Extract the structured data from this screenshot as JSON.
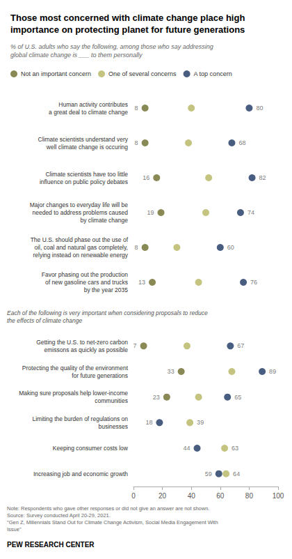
{
  "chart_data": {
    "type": "dot",
    "title": "Those most concerned with climate change place high\nimportance on protecting planet for future generations",
    "subtitle": "% of U.S. adults who say the following, among those who say addressing\nglobal climate change is ___ to them personally",
    "categories": [
      "Human activity contributes\na great deal to climate change",
      "Climate scientists understand very\nwell climate change is occuring",
      "Climate scientists have too little\ninfluence on public policy debates",
      "Major changes to everyday life will be\nneeded to address problems caused\nby climate change",
      "The U.S. should phase out the use of\noil, coal and natural gas completely,\nrelying instead on renewable energy",
      "Favor phasing out the production\nof new gasoline cars and trucks\nby the year 2035",
      "Getting the U.S. to net-zero carbon\nemissons as quickly as possible",
      "Protecting the quality of the environment\nfor future generations",
      "Making sure proposals help lower-income\ncommunities",
      "Limiting the burden of regulations on\nbusinesses",
      "Keeping consumer costs low",
      "Increasing job and economic growth"
    ],
    "series": [
      {
        "name": "Not an important concern",
        "color": "#6b6b2a",
        "values": [
          8,
          8,
          16,
          19,
          8,
          13,
          7,
          33,
          23,
          null,
          null,
          null
        ],
        "value_labels": [
          "8",
          "8",
          "16",
          "19",
          "8",
          "13",
          "7",
          "33",
          "23",
          null,
          null,
          null
        ]
      },
      {
        "name": "One of several concerns",
        "color": "#b5b560",
        "values": [
          40,
          38,
          52,
          50,
          30,
          45,
          37,
          68,
          45,
          39,
          63,
          64
        ],
        "value_labels": [
          null,
          null,
          null,
          null,
          null,
          null,
          null,
          null,
          null,
          "39",
          "63",
          "64"
        ]
      },
      {
        "name": "A top concern",
        "color": "#1a3560",
        "values": [
          80,
          68,
          82,
          74,
          60,
          76,
          67,
          89,
          65,
          18,
          44,
          59
        ],
        "value_labels": [
          "80",
          "68",
          "82",
          "74",
          "60",
          "76",
          "67",
          "89",
          "65",
          "18",
          "44",
          "59"
        ]
      }
    ],
    "annotations": [
      {
        "text": "Each of the following is very important when considering proposals to reduce\nthe effects of climate change",
        "before_category": 6
      }
    ],
    "note": "Note: Respondents who gave other responses or did not give an answer are not shown.\nSource: Survey conducted April 20-29, 2021.\n\"Gen Z, Millennials Stand Out for Climate Change Activism, Social Media Engagement With\nIssue\"",
    "footer": "PEW RESEARCH CENTER",
    "xlim": [
      0,
      100
    ],
    "xticks": [
      0,
      20,
      40,
      60,
      80,
      100
    ],
    "marker": "circle",
    "data_labels": true,
    "legend": "top",
    "grid": false
  }
}
